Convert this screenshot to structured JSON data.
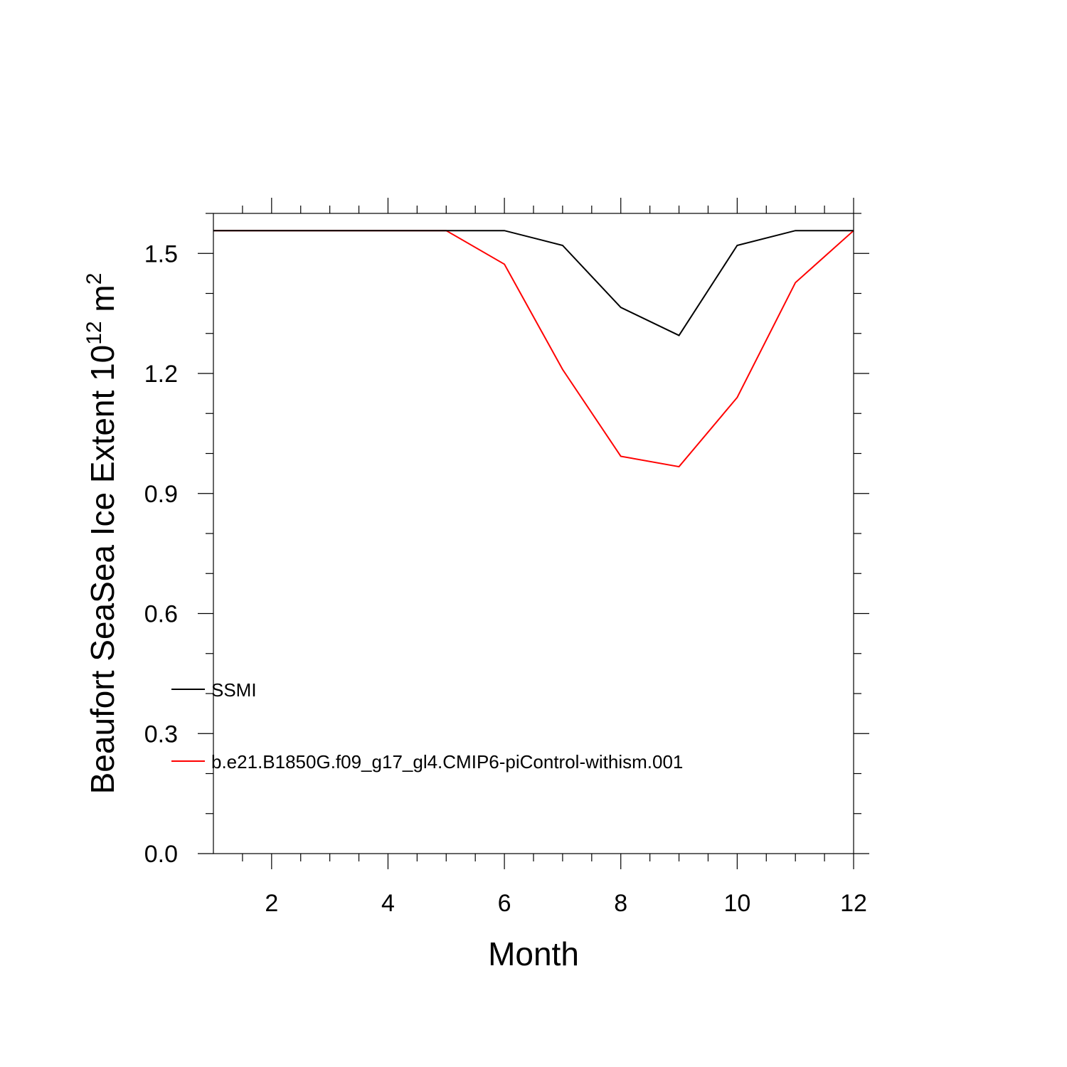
{
  "chart_data": {
    "type": "line",
    "xlabel": "Month",
    "ylabel": {
      "text": "Beaufort SeaSea Ice Extent 10",
      "superscript1": "12",
      "unit": " m",
      "superscript2": "2"
    },
    "xlim": [
      1,
      12
    ],
    "ylim": [
      0.0,
      1.6
    ],
    "x_ticks": [
      2,
      4,
      6,
      8,
      10,
      12
    ],
    "y_ticks": [
      "0.0",
      "0.3",
      "0.6",
      "0.9",
      "1.2",
      "1.5"
    ],
    "grid": false,
    "legend_placement": "bottom-left-inside",
    "x": [
      1,
      2,
      3,
      4,
      5,
      6,
      7,
      8,
      9,
      10,
      11,
      12
    ],
    "series": [
      {
        "name": "SSMI",
        "color": "#000000",
        "values": [
          1.557,
          1.557,
          1.557,
          1.557,
          1.557,
          1.557,
          1.52,
          1.365,
          1.295,
          1.52,
          1.557,
          1.557
        ]
      },
      {
        "name": "b.e21.B1850G.f09_g17_gl4.CMIP6-piControl-withism.001",
        "color": "#ff0000",
        "values": [
          1.557,
          1.557,
          1.557,
          1.557,
          1.557,
          1.473,
          1.21,
          0.993,
          0.967,
          1.14,
          1.427,
          1.557
        ]
      }
    ]
  }
}
